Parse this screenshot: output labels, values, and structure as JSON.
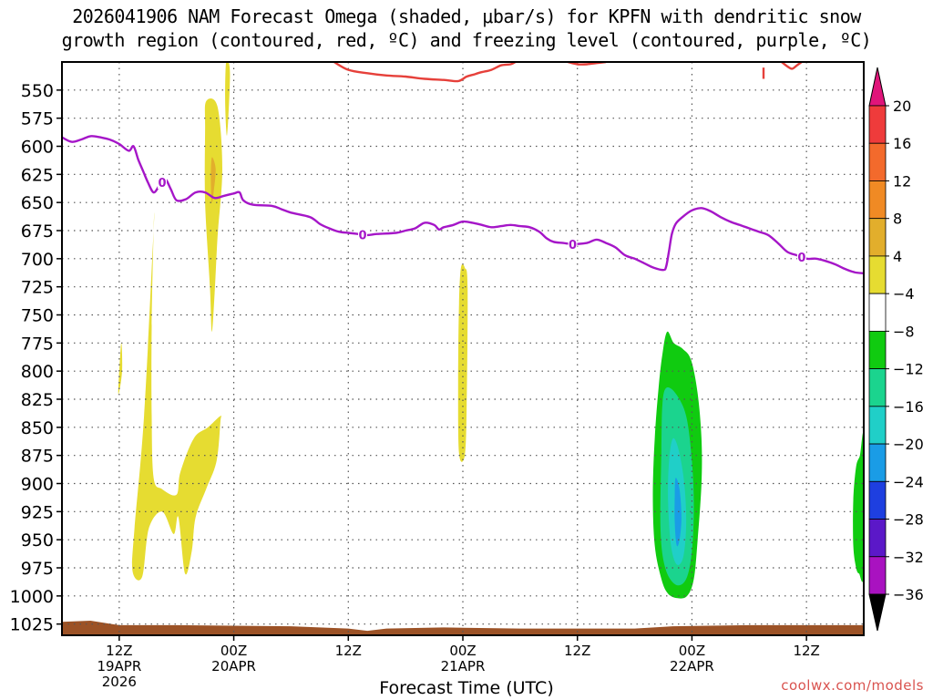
{
  "title_line1": "2026041906 NAM Forecast Omega (shaded, μbar/s) for KPFN with dendritic snow",
  "title_line2": "growth region (contoured, red, ºC) and freezing level (contoured, purple, ºC)",
  "watermark": "coolwx.com/models",
  "chart_data": {
    "type": "heatmap",
    "xlabel": "Forecast Time (UTC)",
    "x_ticks": [
      {
        "hour": 6,
        "lines": [
          "12Z",
          "19APR",
          "2026"
        ]
      },
      {
        "hour": 18,
        "lines": [
          "00Z",
          "20APR"
        ]
      },
      {
        "hour": 30,
        "lines": [
          "12Z"
        ]
      },
      {
        "hour": 42,
        "lines": [
          "00Z",
          "21APR"
        ]
      },
      {
        "hour": 54,
        "lines": [
          "12Z"
        ]
      },
      {
        "hour": 66,
        "lines": [
          "00Z",
          "22APR"
        ]
      },
      {
        "hour": 78,
        "lines": [
          "12Z"
        ]
      }
    ],
    "xlim": [
      0,
      84
    ],
    "ylabel": "",
    "y_scale": "pressure (reversed, hPa)",
    "y_ticks": [
      550,
      575,
      600,
      625,
      650,
      675,
      700,
      725,
      750,
      775,
      800,
      825,
      850,
      875,
      900,
      925,
      950,
      975,
      1000,
      1025
    ],
    "ylim": [
      525,
      1035
    ],
    "grid": true,
    "colorbar": {
      "labels": [
        "20",
        "16",
        "12",
        "8",
        "4",
        "−4",
        "−8",
        "−12",
        "−16",
        "−20",
        "−24",
        "−28",
        "−32",
        "−36"
      ],
      "bounds": [
        20,
        16,
        12,
        8,
        4,
        -4,
        -8,
        -12,
        -16,
        -20,
        -24,
        -28,
        -32,
        -36
      ],
      "colors": [
        "#ef3b3b",
        "#f36a2c",
        "#f08a24",
        "#e2ae2c",
        "#e6dc31",
        "#ffffff",
        "#10cb10",
        "#1bd48e",
        "#20cfc8",
        "#1a9ce6",
        "#1e3fe0",
        "#5b18c8",
        "#a912c0",
        "#a0a0a0"
      ],
      "top_arrow_color": "#e0157a",
      "bottom_arrow_color": "#000000"
    },
    "shaded_regions": [
      {
        "level": "4 to 8",
        "color": "#e6dc31",
        "points": [
          [
            6.2,
            775
          ],
          [
            5.9,
            820
          ],
          [
            6.3,
            800
          ]
        ]
      },
      {
        "level": "4 to 8",
        "color": "#e6dc31",
        "points": [
          [
            9.6,
            675
          ],
          [
            8.6,
            840
          ],
          [
            7.6,
            940
          ],
          [
            7.4,
            978
          ],
          [
            8.4,
            983
          ],
          [
            9.1,
            940
          ],
          [
            10.5,
            925
          ],
          [
            11.7,
            945
          ],
          [
            12.2,
            930
          ],
          [
            12.9,
            980
          ],
          [
            13.6,
            960
          ],
          [
            14.0,
            930
          ],
          [
            15.1,
            905
          ],
          [
            16.2,
            880
          ],
          [
            16.6,
            845
          ],
          [
            16.6,
            840
          ],
          [
            15.3,
            850
          ],
          [
            13.8,
            860
          ],
          [
            12.4,
            890
          ],
          [
            12.0,
            910
          ],
          [
            10.5,
            905
          ],
          [
            9.6,
            895
          ],
          [
            9.4,
            840
          ],
          [
            9.4,
            760
          ],
          [
            9.6,
            675
          ]
        ]
      },
      {
        "level": "4 to 8",
        "color": "#e6dc31",
        "points": [
          [
            15.1,
            560
          ],
          [
            16.3,
            565
          ],
          [
            16.8,
            620
          ],
          [
            16.3,
            680
          ],
          [
            16.0,
            730
          ],
          [
            15.7,
            765
          ],
          [
            15.5,
            725
          ],
          [
            15.0,
            650
          ],
          [
            15.0,
            585
          ]
        ]
      },
      {
        "level": "8 to 12",
        "color": "#e2ae2c",
        "points": [
          [
            15.7,
            610
          ],
          [
            16.1,
            620
          ],
          [
            15.9,
            640
          ],
          [
            15.7,
            650
          ],
          [
            15.6,
            630
          ]
        ]
      },
      {
        "level": "4 to 8",
        "color": "#e6dc31",
        "points": [
          [
            17.2,
            525
          ],
          [
            17.6,
            535
          ],
          [
            17.3,
            590
          ],
          [
            17.1,
            560
          ]
        ]
      },
      {
        "level": "4 to 8",
        "color": "#e6dc31",
        "points": [
          [
            41.8,
            708
          ],
          [
            42.2,
            708
          ],
          [
            42.5,
            725
          ],
          [
            42.4,
            830
          ],
          [
            42.2,
            875
          ],
          [
            41.6,
            873
          ],
          [
            41.5,
            810
          ],
          [
            41.6,
            740
          ]
        ]
      },
      {
        "level": "-4 to -8",
        "color": "#10cb10",
        "points": [
          [
            63.4,
            765
          ],
          [
            64.1,
            775
          ],
          [
            65.0,
            780
          ],
          [
            65.9,
            790
          ],
          [
            66.6,
            820
          ],
          [
            67.0,
            860
          ],
          [
            67.0,
            900
          ],
          [
            66.6,
            950
          ],
          [
            66.2,
            985
          ],
          [
            65.5,
            1000
          ],
          [
            64.5,
            1002
          ],
          [
            63.5,
            998
          ],
          [
            62.8,
            985
          ],
          [
            62.1,
            955
          ],
          [
            61.9,
            910
          ],
          [
            62.1,
            860
          ],
          [
            62.5,
            815
          ],
          [
            62.9,
            785
          ]
        ]
      },
      {
        "level": "-8 to -12",
        "color": "#1bd48e",
        "points": [
          [
            63.3,
            815
          ],
          [
            64.3,
            820
          ],
          [
            65.4,
            840
          ],
          [
            66.0,
            880
          ],
          [
            66.2,
            920
          ],
          [
            66.0,
            960
          ],
          [
            65.4,
            985
          ],
          [
            64.3,
            990
          ],
          [
            63.2,
            975
          ],
          [
            62.7,
            940
          ],
          [
            62.8,
            870
          ],
          [
            62.9,
            830
          ]
        ]
      },
      {
        "level": "-12 to -16",
        "color": "#20cfc8",
        "points": [
          [
            64.0,
            860
          ],
          [
            64.6,
            870
          ],
          [
            65.2,
            900
          ],
          [
            65.4,
            935
          ],
          [
            65.1,
            965
          ],
          [
            64.4,
            972
          ],
          [
            63.8,
            955
          ],
          [
            63.5,
            915
          ],
          [
            63.6,
            880
          ]
        ]
      },
      {
        "level": "-16 to -20",
        "color": "#1a9ce6",
        "points": [
          [
            64.3,
            895
          ],
          [
            64.7,
            905
          ],
          [
            64.9,
            930
          ],
          [
            64.7,
            950
          ],
          [
            64.4,
            955
          ],
          [
            64.2,
            935
          ],
          [
            64.2,
            910
          ]
        ]
      },
      {
        "level": "-4 to -8",
        "color": "#10cb10",
        "points": [
          [
            84,
            860
          ],
          [
            83.6,
            875
          ],
          [
            83.2,
            885
          ],
          [
            82.9,
            915
          ],
          [
            82.9,
            955
          ],
          [
            83.2,
            975
          ],
          [
            83.5,
            980
          ],
          [
            84,
            978
          ]
        ]
      }
    ],
    "contours": [
      {
        "name": "freezing level",
        "color": "#a516c8",
        "label": "0",
        "label_hours": [
          10.5,
          31.5,
          53.5,
          77.5
        ],
        "points": [
          [
            0,
            592
          ],
          [
            1,
            596
          ],
          [
            2,
            594
          ],
          [
            3,
            591
          ],
          [
            4,
            592
          ],
          [
            5,
            594
          ],
          [
            6,
            598
          ],
          [
            7,
            604
          ],
          [
            7.5,
            600
          ],
          [
            8,
            612
          ],
          [
            8.5,
            622
          ],
          [
            9,
            632
          ],
          [
            9.6,
            641
          ],
          [
            10.2,
            635
          ],
          [
            10.8,
            629
          ],
          [
            11.4,
            638
          ],
          [
            12,
            648
          ],
          [
            13,
            647
          ],
          [
            14,
            641
          ],
          [
            15,
            641
          ],
          [
            16,
            646
          ],
          [
            17,
            644
          ],
          [
            18,
            642
          ],
          [
            18.6,
            641
          ],
          [
            19,
            648
          ],
          [
            20,
            652
          ],
          [
            22,
            653
          ],
          [
            23,
            656
          ],
          [
            24,
            659
          ],
          [
            26,
            663
          ],
          [
            27,
            669
          ],
          [
            28,
            673
          ],
          [
            29,
            676
          ],
          [
            30,
            677
          ],
          [
            31,
            678
          ],
          [
            32,
            679
          ],
          [
            33,
            678
          ],
          [
            35,
            677
          ],
          [
            36,
            675
          ],
          [
            37,
            673
          ],
          [
            38,
            668
          ],
          [
            39,
            670
          ],
          [
            39.5,
            674
          ],
          [
            40,
            672
          ],
          [
            41,
            670
          ],
          [
            42,
            667
          ],
          [
            43,
            668
          ],
          [
            44,
            670
          ],
          [
            45,
            672
          ],
          [
            46,
            671
          ],
          [
            47,
            670
          ],
          [
            48,
            671
          ],
          [
            49,
            672
          ],
          [
            50,
            676
          ],
          [
            50.8,
            682
          ],
          [
            51.5,
            685
          ],
          [
            52.5,
            686
          ],
          [
            53.5,
            687
          ],
          [
            55,
            686
          ],
          [
            56,
            683
          ],
          [
            57,
            686
          ],
          [
            58,
            690
          ],
          [
            59,
            697
          ],
          [
            60,
            700
          ],
          [
            61,
            704
          ],
          [
            62,
            708
          ],
          [
            63,
            710
          ],
          [
            63.3,
            707
          ],
          [
            63.6,
            693
          ],
          [
            63.9,
            678
          ],
          [
            64.3,
            669
          ],
          [
            65,
            663
          ],
          [
            66,
            657
          ],
          [
            67,
            655
          ],
          [
            68,
            658
          ],
          [
            69,
            663
          ],
          [
            70,
            667
          ],
          [
            71,
            670
          ],
          [
            72,
            673
          ],
          [
            73,
            676
          ],
          [
            74,
            679
          ],
          [
            75,
            686
          ],
          [
            76,
            694
          ],
          [
            77,
            697
          ],
          [
            78,
            700
          ],
          [
            79,
            700
          ],
          [
            80,
            702
          ],
          [
            81,
            705
          ],
          [
            82,
            709
          ],
          [
            83,
            712
          ],
          [
            84,
            713
          ]
        ]
      },
      {
        "name": "dendritic snow growth region",
        "color": "#e6403a",
        "label": "",
        "label_hours": [],
        "points": [
          [
            28.5,
            525
          ],
          [
            30,
            532
          ],
          [
            32,
            535
          ],
          [
            34,
            537
          ],
          [
            36,
            538
          ],
          [
            38,
            540
          ],
          [
            40,
            541
          ],
          [
            41.5,
            542
          ],
          [
            42.4,
            538
          ],
          [
            43.2,
            536
          ],
          [
            44,
            534
          ],
          [
            45,
            532
          ],
          [
            46,
            528
          ],
          [
            47,
            527
          ],
          [
            47.5,
            525
          ]
        ]
      },
      {
        "name": "dendritic snow growth region",
        "color": "#e6403a",
        "label": "",
        "label_hours": [],
        "points": [
          [
            53,
            525
          ],
          [
            54,
            527
          ],
          [
            55,
            527
          ],
          [
            56,
            526
          ],
          [
            57,
            525
          ]
        ]
      },
      {
        "name": "dendritic snow growth region",
        "color": "#e6403a",
        "label": "",
        "label_hours": [],
        "points": [
          [
            73.5,
            530
          ],
          [
            73.5,
            540
          ]
        ]
      },
      {
        "name": "dendritic snow growth region",
        "color": "#e6403a",
        "label": "",
        "label_hours": [],
        "points": [
          [
            75.4,
            525
          ],
          [
            76,
            529
          ],
          [
            76.5,
            531
          ],
          [
            77,
            528
          ],
          [
            77.5,
            525
          ]
        ]
      }
    ],
    "ground": {
      "color": "#9c5226",
      "points": [
        [
          0,
          1023
        ],
        [
          3,
          1022
        ],
        [
          6,
          1026
        ],
        [
          12,
          1026
        ],
        [
          24,
          1027
        ],
        [
          30,
          1029
        ],
        [
          32,
          1031
        ],
        [
          34,
          1029
        ],
        [
          40,
          1028
        ],
        [
          48,
          1029
        ],
        [
          60,
          1029
        ],
        [
          64,
          1027
        ],
        [
          72,
          1026
        ],
        [
          84,
          1026
        ]
      ]
    }
  }
}
